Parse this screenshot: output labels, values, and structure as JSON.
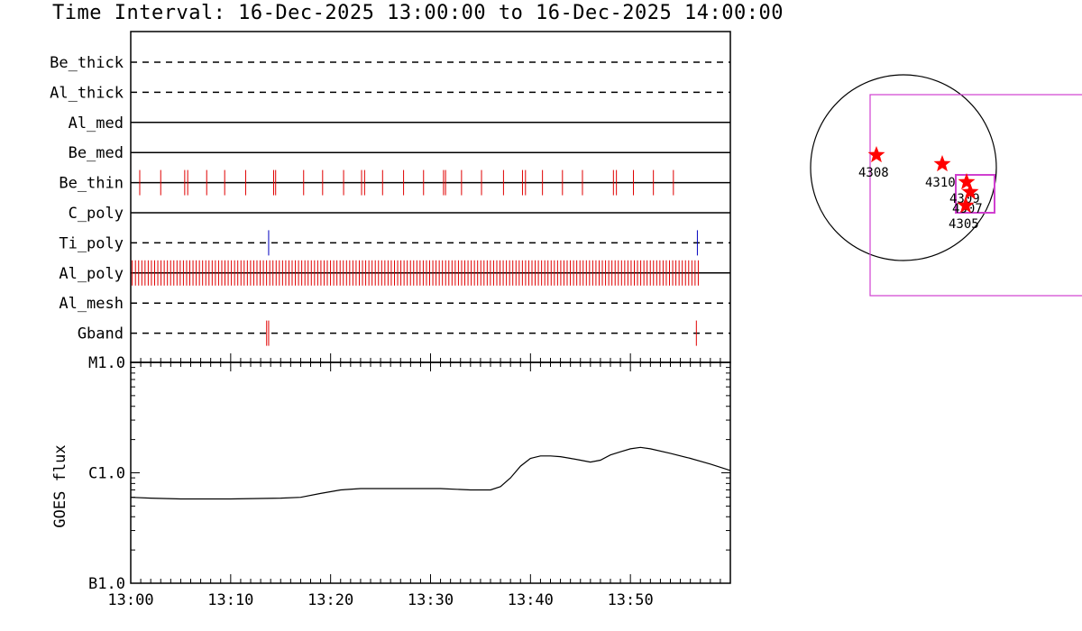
{
  "title": "Time Interval: 16-Dec-2025 13:00:00 to 16-Dec-2025 14:00:00",
  "chart_data": [
    {
      "type": "scatter",
      "x_range": [
        "13:00",
        "14:00"
      ],
      "rows": [
        {
          "name": "Be_thick",
          "line": "dashed",
          "events": []
        },
        {
          "name": "Al_thick",
          "line": "dashed",
          "events": []
        },
        {
          "name": "Al_med",
          "line": "solid",
          "events": []
        },
        {
          "name": "Be_med",
          "line": "solid",
          "events": []
        },
        {
          "name": "Be_thin",
          "line": "solid",
          "color": "#e00000",
          "events": [
            0.9,
            3.0,
            5.4,
            5.7,
            7.6,
            9.4,
            11.5,
            14.3,
            14.5,
            17.3,
            19.2,
            21.3,
            23.1,
            23.4,
            25.2,
            27.3,
            29.3,
            31.3,
            31.5,
            33.1,
            35.1,
            37.3,
            39.2,
            39.5,
            41.2,
            43.2,
            45.2,
            48.3,
            48.6,
            50.3,
            52.3,
            54.3
          ]
        },
        {
          "name": "C_poly",
          "line": "solid",
          "events": []
        },
        {
          "name": "Ti_poly",
          "line": "dashed",
          "color": "#0000c0",
          "events": [
            13.8,
            56.7
          ]
        },
        {
          "name": "Al_poly",
          "line": "solid",
          "color": "#e00000",
          "density": "continuous",
          "x_span": [
            0.0,
            57.0
          ],
          "spacing_min": 0.32
        },
        {
          "name": "Al_mesh",
          "line": "dashed",
          "events": []
        },
        {
          "name": "Gband",
          "line": "dashed",
          "color": "#e00000",
          "events": [
            13.6,
            13.8,
            56.6
          ]
        }
      ]
    },
    {
      "type": "line",
      "ylabel": "GOES flux",
      "yscale": "log",
      "y_ticks": [
        "M1.0",
        "C1.0",
        "B1.0"
      ],
      "ylim": [
        1e-07,
        1e-05
      ],
      "x_ticks": [
        "13:00",
        "13:10",
        "13:20",
        "13:30",
        "13:40",
        "13:50"
      ],
      "series": [
        {
          "x_min": [
            0,
            2,
            5,
            10,
            15,
            17,
            19,
            21,
            23,
            27,
            31,
            34,
            36,
            37,
            38,
            39,
            40,
            41,
            42,
            43,
            44,
            45,
            46,
            47,
            48,
            49,
            50,
            51,
            52,
            54,
            56,
            58,
            60
          ],
          "y": [
            6e-07,
            5.9e-07,
            5.8e-07,
            5.8e-07,
            5.9e-07,
            6e-07,
            6.5e-07,
            7e-07,
            7.2e-07,
            7.2e-07,
            7.2e-07,
            7e-07,
            7e-07,
            7.5e-07,
            9e-07,
            1.15e-06,
            1.35e-06,
            1.42e-06,
            1.42e-06,
            1.4e-06,
            1.35e-06,
            1.3e-06,
            1.25e-06,
            1.3e-06,
            1.45e-06,
            1.55e-06,
            1.65e-06,
            1.7e-06,
            1.65e-06,
            1.5e-06,
            1.35e-06,
            1.2e-06,
            1.05e-06
          ]
        }
      ]
    },
    {
      "type": "scatter",
      "points": [
        {
          "label": "4308"
        },
        {
          "label": "4310"
        },
        {
          "label": "4309"
        },
        {
          "label": "4307"
        },
        {
          "label": "4305"
        }
      ],
      "marker_color": "#ff0000",
      "box_color": "#d040d0"
    }
  ]
}
